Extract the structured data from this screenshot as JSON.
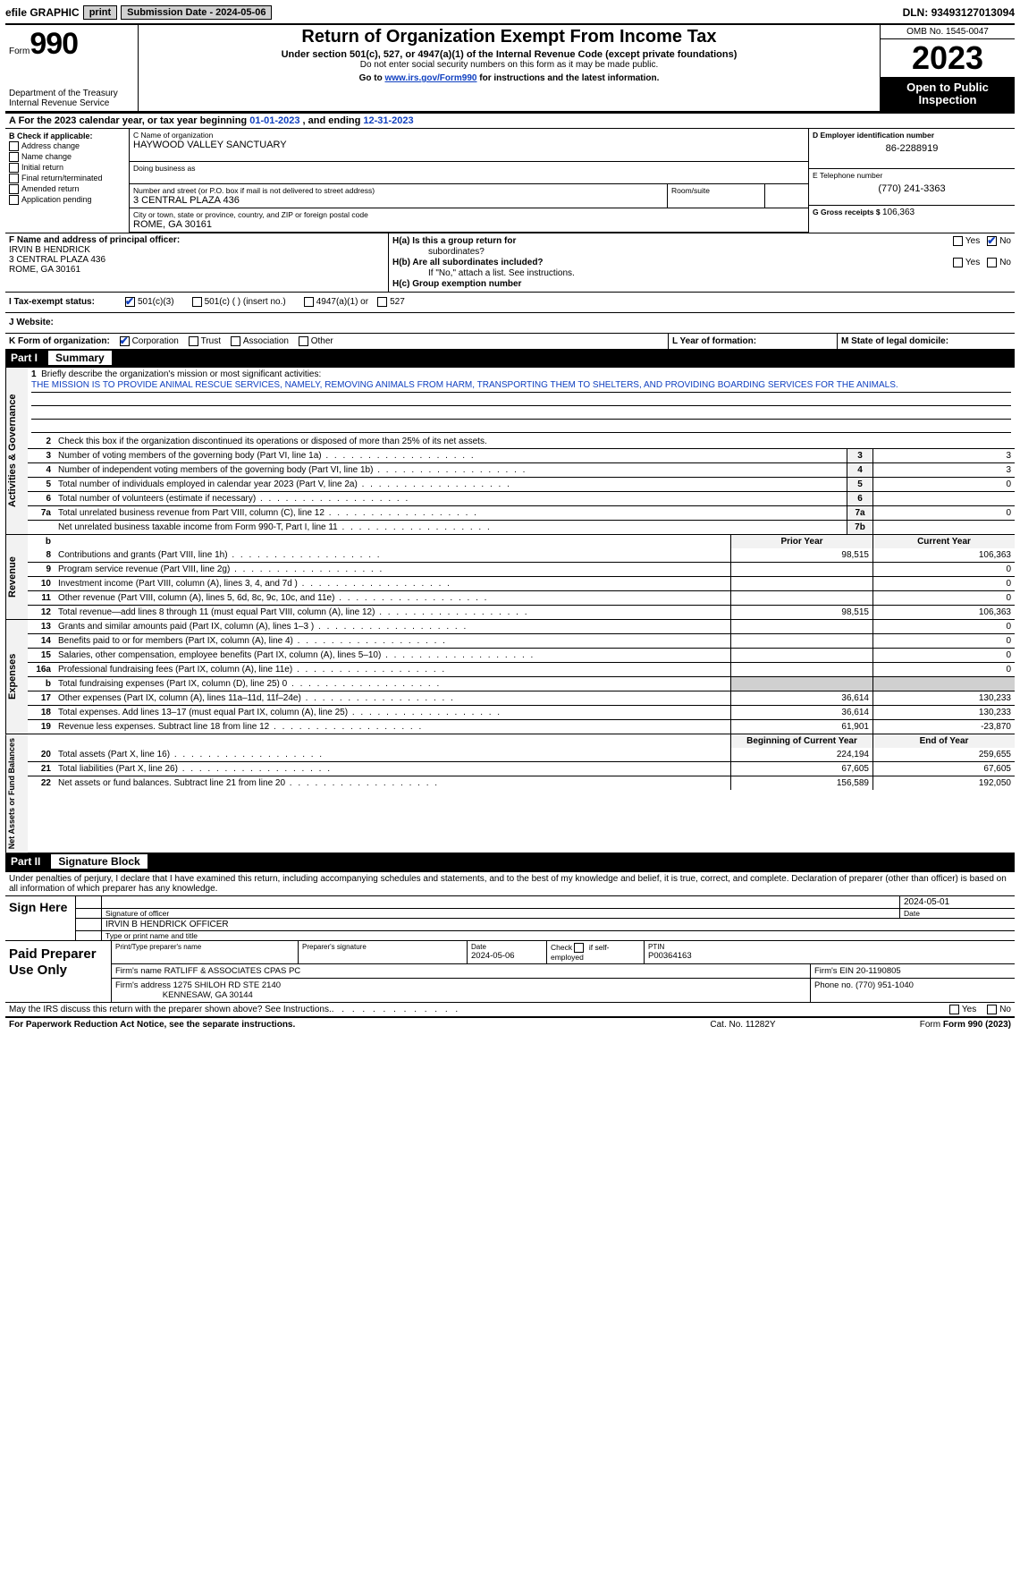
{
  "topbar": {
    "efile": "efile GRAPHIC",
    "print": "print",
    "subdate_label": "Submission Date - ",
    "subdate": "2024-05-06",
    "dln_label": "DLN: ",
    "dln": "93493127013094"
  },
  "header": {
    "form_word": "Form",
    "form_num": "990",
    "title": "Return of Organization Exempt From Income Tax",
    "sub": "Under section 501(c), 527, or 4947(a)(1) of the Internal Revenue Code (except private foundations)",
    "ssn": "Do not enter social security numbers on this form as it may be made public.",
    "goto_pre": "Go to ",
    "goto_link": "www.irs.gov/Form990",
    "goto_post": " for instructions and the latest information.",
    "dept1": "Department of the Treasury",
    "dept2": "Internal Revenue Service",
    "omb": "OMB No. 1545-0047",
    "year": "2023",
    "otp1": "Open to Public",
    "otp2": "Inspection"
  },
  "rowA": {
    "pre": "A For the 2023 calendar year, or tax year beginning ",
    "begin": "01-01-2023",
    "mid": " , and ending ",
    "end": "12-31-2023"
  },
  "colB": {
    "title": "B Check if applicable:",
    "items": [
      "Address change",
      "Name change",
      "Initial return",
      "Final return/terminated",
      "Amended return",
      "Application pending"
    ]
  },
  "colC": {
    "name_label": "C Name of organization",
    "name": "HAYWOOD VALLEY SANCTUARY",
    "dba_label": "Doing business as",
    "addr_label": "Number and street (or P.O. box if mail is not delivered to street address)",
    "addr": "3 CENTRAL PLAZA 436",
    "room_label": "Room/suite",
    "city_label": "City or town, state or province, country, and ZIP or foreign postal code",
    "city": "ROME, GA  30161"
  },
  "colD": {
    "ein_label": "D Employer identification number",
    "ein": "86-2288919",
    "tel_label": "E Telephone number",
    "tel": "(770) 241-3363",
    "gross_label": "G Gross receipts $ ",
    "gross": "106,363"
  },
  "rowF": {
    "label": "F  Name and address of principal officer:",
    "name": "IRVIN B HENDRICK",
    "addr1": "3 CENTRAL PLAZA 436",
    "addr2": "ROME, GA  30161"
  },
  "rowH": {
    "ha": "H(a)  Is this a group return for",
    "ha2": "subordinates?",
    "hb": "H(b)  Are all subordinates included?",
    "hb2": "If \"No,\" attach a list. See instructions.",
    "hc": "H(c)  Group exemption number ",
    "yes": "Yes",
    "no": "No"
  },
  "rowI": {
    "label": "I    Tax-exempt status:",
    "o1": "501(c)(3)",
    "o2": "501(c) (  ) (insert no.)",
    "o3": "4947(a)(1) or",
    "o4": "527"
  },
  "rowJ": {
    "label": "J    Website:"
  },
  "rowK": {
    "k": "K Form of organization:",
    "k1": "Corporation",
    "k2": "Trust",
    "k3": "Association",
    "k4": "Other",
    "l": "L Year of formation:",
    "m": "M State of legal domicile:"
  },
  "part1": {
    "num": "Part I",
    "title": "Summary"
  },
  "tabs": {
    "ag": "Activities & Governance",
    "rev": "Revenue",
    "exp": "Expenses",
    "na": "Net Assets or\nFund Balances"
  },
  "mission": {
    "num": "1",
    "label": "Briefly describe the organization's mission or most significant activities:",
    "text": "THE MISSION IS TO PROVIDE ANIMAL RESCUE SERVICES, NAMELY, REMOVING ANIMALS FROM HARM, TRANSPORTING THEM TO SHELTERS, AND PROVIDING BOARDING SERVICES FOR THE ANIMALS."
  },
  "lines_ag": [
    {
      "n": "2",
      "t": "Check this box     if the organization discontinued its operations or disposed of more than 25% of its net assets.",
      "box": "",
      "v": ""
    },
    {
      "n": "3",
      "t": "Number of voting members of the governing body (Part VI, line 1a)",
      "box": "3",
      "v": "3"
    },
    {
      "n": "4",
      "t": "Number of independent voting members of the governing body (Part VI, line 1b)",
      "box": "4",
      "v": "3"
    },
    {
      "n": "5",
      "t": "Total number of individuals employed in calendar year 2023 (Part V, line 2a)",
      "box": "5",
      "v": "0"
    },
    {
      "n": "6",
      "t": "Total number of volunteers (estimate if necessary)",
      "box": "6",
      "v": ""
    },
    {
      "n": "7a",
      "t": "Total unrelated business revenue from Part VIII, column (C), line 12",
      "box": "7a",
      "v": "0"
    },
    {
      "n": "",
      "t": "Net unrelated business taxable income from Form 990-T, Part I, line 11",
      "box": "7b",
      "v": ""
    }
  ],
  "pycy_hdr": {
    "n": "b",
    "py": "Prior Year",
    "cy": "Current Year"
  },
  "lines_rev": [
    {
      "n": "8",
      "t": "Contributions and grants (Part VIII, line 1h)",
      "py": "98,515",
      "cy": "106,363"
    },
    {
      "n": "9",
      "t": "Program service revenue (Part VIII, line 2g)",
      "py": "",
      "cy": "0"
    },
    {
      "n": "10",
      "t": "Investment income (Part VIII, column (A), lines 3, 4, and 7d )",
      "py": "",
      "cy": "0"
    },
    {
      "n": "11",
      "t": "Other revenue (Part VIII, column (A), lines 5, 6d, 8c, 9c, 10c, and 11e)",
      "py": "",
      "cy": "0"
    },
    {
      "n": "12",
      "t": "Total revenue—add lines 8 through 11 (must equal Part VIII, column (A), line 12)",
      "py": "98,515",
      "cy": "106,363"
    }
  ],
  "lines_exp": [
    {
      "n": "13",
      "t": "Grants and similar amounts paid (Part IX, column (A), lines 1–3 )",
      "py": "",
      "cy": "0"
    },
    {
      "n": "14",
      "t": "Benefits paid to or for members (Part IX, column (A), line 4)",
      "py": "",
      "cy": "0"
    },
    {
      "n": "15",
      "t": "Salaries, other compensation, employee benefits (Part IX, column (A), lines 5–10)",
      "py": "",
      "cy": "0"
    },
    {
      "n": "16a",
      "t": "Professional fundraising fees (Part IX, column (A), line 11e)",
      "py": "",
      "cy": "0"
    },
    {
      "n": "b",
      "t": "Total fundraising expenses (Part IX, column (D), line 25) 0",
      "py": "shade",
      "cy": "shade"
    },
    {
      "n": "17",
      "t": "Other expenses (Part IX, column (A), lines 11a–11d, 11f–24e)",
      "py": "36,614",
      "cy": "130,233"
    },
    {
      "n": "18",
      "t": "Total expenses. Add lines 13–17 (must equal Part IX, column (A), line 25)",
      "py": "36,614",
      "cy": "130,233"
    },
    {
      "n": "19",
      "t": "Revenue less expenses. Subtract line 18 from line 12",
      "py": "61,901",
      "cy": "-23,870"
    }
  ],
  "na_hdr": {
    "py": "Beginning of Current Year",
    "cy": "End of Year"
  },
  "lines_na": [
    {
      "n": "20",
      "t": "Total assets (Part X, line 16)",
      "py": "224,194",
      "cy": "259,655"
    },
    {
      "n": "21",
      "t": "Total liabilities (Part X, line 26)",
      "py": "67,605",
      "cy": "67,605"
    },
    {
      "n": "22",
      "t": "Net assets or fund balances. Subtract line 21 from line 20",
      "py": "156,589",
      "cy": "192,050"
    }
  ],
  "part2": {
    "num": "Part II",
    "title": "Signature Block"
  },
  "sig": {
    "decl": "Under penalties of perjury, I declare that I have examined this return, including accompanying schedules and statements, and to the best of my knowledge and belief, it is true, correct, and complete. Declaration of preparer (other than officer) is based on all information of which preparer has any knowledge.",
    "sign_here": "Sign Here",
    "sig_officer": "Signature of officer",
    "date": "2024-05-01",
    "date_l": "Date",
    "officer": "IRVIN B HENDRICK  OFFICER",
    "type_l": "Type or print name and title"
  },
  "paid": {
    "label": "Paid Preparer Use Only",
    "c1": "Print/Type preparer's name",
    "c2": "Preparer's signature",
    "c3_l": "Date",
    "c3_v": "2024-05-06",
    "c4": "Check      if self-employed",
    "c5_l": "PTIN",
    "c5_v": "P00364163",
    "firm_l": "Firm's name    ",
    "firm_v": "RATLIFF & ASSOCIATES CPAS PC",
    "fein_l": "Firm's EIN  ",
    "fein_v": "20-1190805",
    "faddr_l": "Firm's address ",
    "faddr_v1": "1275 SHILOH RD STE 2140",
    "faddr_v2": "KENNESAW, GA  30144",
    "phone_l": "Phone no. ",
    "phone_v": "(770) 951-1040"
  },
  "discuss": {
    "q": "May the IRS discuss this return with the preparer shown above? See Instructions.",
    "yes": "Yes",
    "no": "No"
  },
  "footer": {
    "pra": "For Paperwork Reduction Act Notice, see the separate instructions.",
    "cat": "Cat. No. 11282Y",
    "form": "Form 990 (2023)"
  }
}
